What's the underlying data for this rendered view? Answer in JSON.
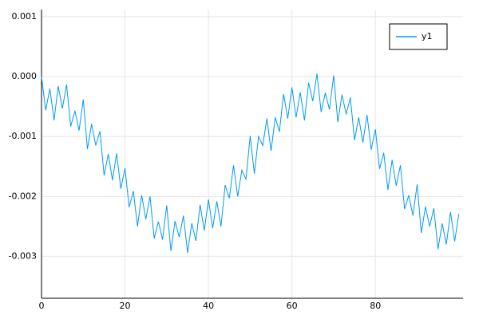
{
  "chart_data": {
    "type": "line",
    "x": [
      0,
      1,
      2,
      3,
      4,
      5,
      6,
      7,
      8,
      9,
      10,
      11,
      12,
      13,
      14,
      15,
      16,
      17,
      18,
      19,
      20,
      21,
      22,
      23,
      24,
      25,
      26,
      27,
      28,
      29,
      30,
      31,
      32,
      33,
      34,
      35,
      36,
      37,
      38,
      39,
      40,
      41,
      42,
      43,
      44,
      45,
      46,
      47,
      48,
      49,
      50,
      51,
      52,
      53,
      54,
      55,
      56,
      57,
      58,
      59,
      60,
      61,
      62,
      63,
      64,
      65,
      66,
      67,
      68,
      69,
      70,
      71,
      72,
      73,
      74,
      75,
      76,
      77,
      78,
      79,
      80,
      81,
      82,
      83,
      84,
      85,
      86,
      87,
      88,
      89,
      90,
      91,
      92,
      93,
      94,
      95,
      96,
      97,
      98,
      99,
      100
    ],
    "series": [
      {
        "name": "y1",
        "color": "#009af9",
        "values": [
          0.0,
          -0.00056,
          -0.0002,
          -0.00073,
          -0.00016,
          -0.00053,
          -0.00013,
          -0.00083,
          -0.00057,
          -0.0009,
          -0.00038,
          -0.00121,
          -0.00079,
          -0.00115,
          -0.00091,
          -0.00165,
          -0.00129,
          -0.00173,
          -0.00128,
          -0.00187,
          -0.00153,
          -0.00218,
          -0.00191,
          -0.0025,
          -0.00198,
          -0.00238,
          -0.002,
          -0.0027,
          -0.00242,
          -0.00272,
          -0.00215,
          -0.00291,
          -0.00241,
          -0.00268,
          -0.00232,
          -0.00294,
          -0.00245,
          -0.00274,
          -0.00214,
          -0.00257,
          -0.00205,
          -0.00253,
          -0.00208,
          -0.0025,
          -0.00181,
          -0.00203,
          -0.00148,
          -0.002,
          -0.00156,
          -0.00171,
          -0.00099,
          -0.00162,
          -0.001,
          -0.00115,
          -0.0007,
          -0.00124,
          -0.00068,
          -0.00092,
          -0.00029,
          -0.0007,
          -0.00018,
          -0.00068,
          -0.00026,
          -0.00073,
          -0.0001,
          -0.00041,
          5e-05,
          -0.00059,
          -0.00027,
          -0.00055,
          2e-05,
          -0.00076,
          -0.0003,
          -0.00063,
          -0.00035,
          -0.00106,
          -0.00068,
          -0.0011,
          -0.00064,
          -0.00122,
          -0.00088,
          -0.00154,
          -0.00127,
          -0.00189,
          -0.00139,
          -0.00182,
          -0.00148,
          -0.00221,
          -0.00198,
          -0.00232,
          -0.0018,
          -0.00261,
          -0.00217,
          -0.0025,
          -0.0022,
          -0.00288,
          -0.00245,
          -0.0028,
          -0.00226,
          -0.00275,
          -0.00229
        ]
      }
    ],
    "xlim": [
      0,
      101
    ],
    "xticks": [
      0,
      20,
      40,
      60,
      80
    ],
    "ylim": [
      -0.0037,
      0.00112
    ],
    "yticks": [
      {
        "value": 0.001,
        "label": "0.001"
      },
      {
        "value": 0,
        "label": "0.000"
      },
      {
        "value": -0.001,
        "label": "-0.001"
      },
      {
        "value": -0.002,
        "label": "-0.002"
      },
      {
        "value": -0.003,
        "label": "-0.003"
      }
    ],
    "grid": true,
    "legend": "top-right"
  }
}
